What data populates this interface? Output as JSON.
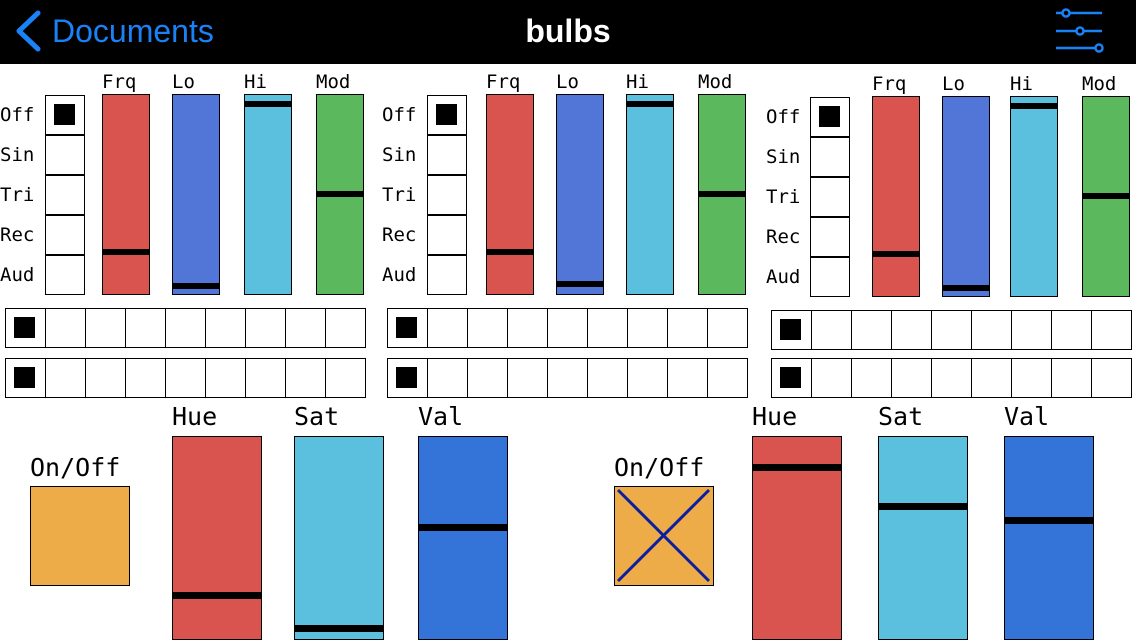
{
  "app": {
    "title": "bulbs",
    "back_label": "Documents",
    "colors": {
      "nav_bg": "#000000",
      "accent": "#1a82f7",
      "red": "#d9534f",
      "blue": "#5176d8",
      "cyan": "#5bc0de",
      "green": "#5cb85c",
      "dark_blue": "#3474d8",
      "orange": "#eeac48"
    }
  },
  "wave_labels": [
    "Off",
    "Sin",
    "Tri",
    "Rec",
    "Aud"
  ],
  "slider_labels": [
    "Frq",
    "Lo",
    "Hi",
    "Mod"
  ],
  "oscillators": [
    {
      "selected_wave": "Off",
      "frq": 0.2,
      "lo": 0.02,
      "hi": 0.97,
      "mod": 0.5,
      "row1_selected": 0,
      "row2_selected": 0
    },
    {
      "selected_wave": "Off",
      "frq": 0.2,
      "lo": 0.03,
      "hi": 0.97,
      "mod": 0.5,
      "row1_selected": 0,
      "row2_selected": 0
    },
    {
      "selected_wave": "Off",
      "frq": 0.2,
      "lo": 0.02,
      "hi": 0.97,
      "mod": 0.5,
      "row1_selected": 0,
      "row2_selected": 0
    }
  ],
  "bulb_labels": {
    "on_off": "On/Off",
    "hue": "Hue",
    "sat": "Sat",
    "val": "Val"
  },
  "bulbs": [
    {
      "on": true,
      "hue": 0.2,
      "sat": 0.03,
      "val": 0.55
    },
    {
      "on": false,
      "hue": 0.86,
      "sat": 0.66,
      "val": 0.59
    }
  ]
}
